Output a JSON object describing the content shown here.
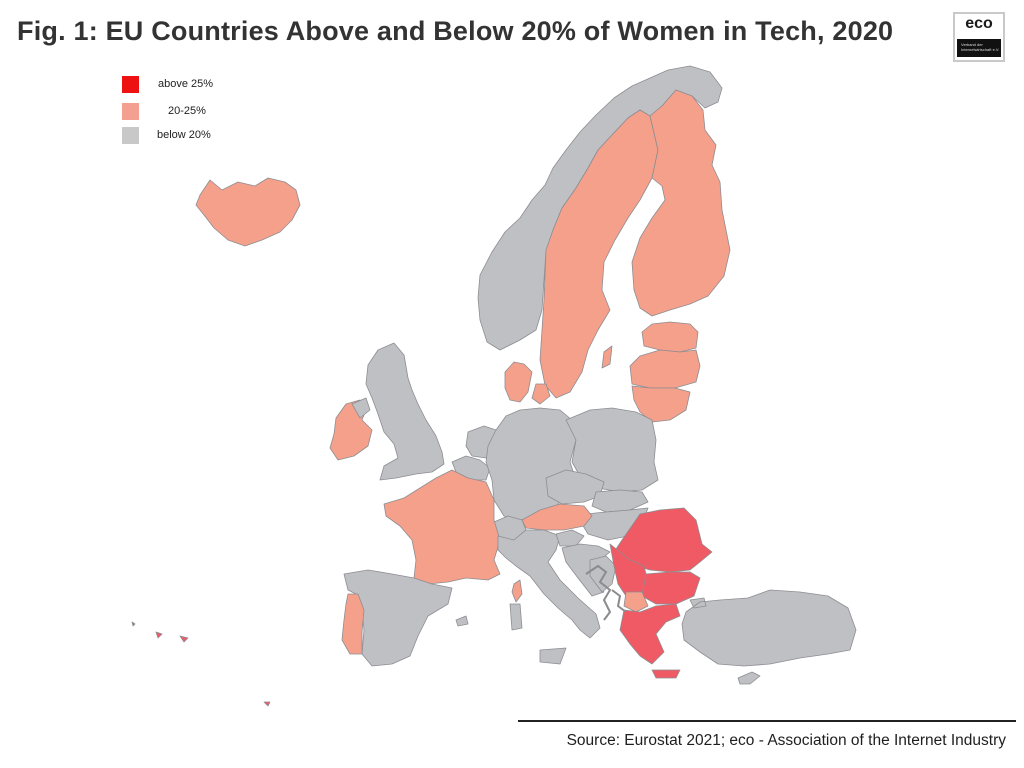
{
  "title": "Fig. 1: EU Countries Above and Below 20% of Women in Tech, 2020",
  "logo": {
    "word": "eco",
    "tagline": "Verband der\nInternetwirtschaft e.V.",
    "dot_colors": [
      "#e01010",
      "#bdbdbd",
      "#e01010"
    ]
  },
  "legend": {
    "items": [
      {
        "label": "above 25%",
        "color": "#ee1111"
      },
      {
        "label": "20-25%",
        "color": "#f4a090"
      },
      {
        "label": "below 20%",
        "color": "#c8c8c8"
      }
    ]
  },
  "colors": {
    "above": "#ef5a64",
    "mid": "#f5a08b",
    "below": "#bfc0c4",
    "border": "#8d8d92",
    "background": "#ffffff"
  },
  "countries": [
    {
      "name": "Iceland",
      "category": "mid"
    },
    {
      "name": "Norway",
      "category": "below"
    },
    {
      "name": "Sweden",
      "category": "mid"
    },
    {
      "name": "Finland",
      "category": "mid"
    },
    {
      "name": "Estonia",
      "category": "mid"
    },
    {
      "name": "Latvia",
      "category": "mid"
    },
    {
      "name": "Lithuania",
      "category": "mid"
    },
    {
      "name": "Denmark",
      "category": "mid"
    },
    {
      "name": "Ireland",
      "category": "mid"
    },
    {
      "name": "United Kingdom",
      "category": "below"
    },
    {
      "name": "Netherlands",
      "category": "below"
    },
    {
      "name": "Belgium",
      "category": "below"
    },
    {
      "name": "Germany",
      "category": "below"
    },
    {
      "name": "Poland",
      "category": "below"
    },
    {
      "name": "Czechia",
      "category": "below"
    },
    {
      "name": "Slovakia",
      "category": "below"
    },
    {
      "name": "Hungary",
      "category": "below"
    },
    {
      "name": "Austria",
      "category": "mid"
    },
    {
      "name": "Switzerland",
      "category": "below"
    },
    {
      "name": "France",
      "category": "mid"
    },
    {
      "name": "Spain",
      "category": "below"
    },
    {
      "name": "Portugal",
      "category": "mid"
    },
    {
      "name": "Italy",
      "category": "below"
    },
    {
      "name": "Slovenia",
      "category": "below"
    },
    {
      "name": "Croatia",
      "category": "below"
    },
    {
      "name": "Romania",
      "category": "above"
    },
    {
      "name": "Serbia",
      "category": "above"
    },
    {
      "name": "Bulgaria",
      "category": "above"
    },
    {
      "name": "North Macedonia",
      "category": "mid"
    },
    {
      "name": "Greece",
      "category": "above"
    },
    {
      "name": "Turkey",
      "category": "below"
    },
    {
      "name": "Cyprus",
      "category": "below"
    },
    {
      "name": "Corsica",
      "category": "mid"
    }
  ],
  "source": "Source: Eurostat 2021; eco - Association of the Internet Industry"
}
